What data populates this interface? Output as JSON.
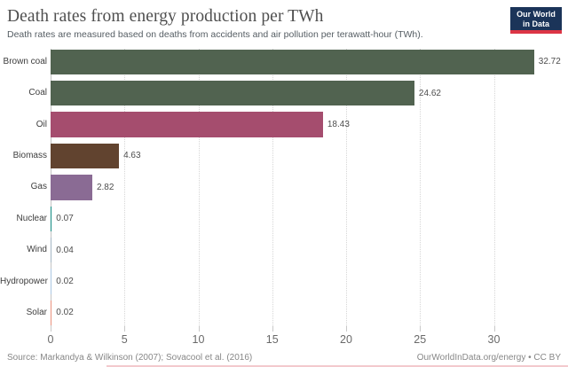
{
  "header": {
    "title": "Death rates from energy production per TWh",
    "subtitle": "Death rates are measured based on deaths from accidents and air pollution per terawatt-hour (TWh).",
    "logo": {
      "line1": "Our World",
      "line2": "in Data",
      "bg_color": "#1b3459",
      "stripe_color": "#dc3545"
    }
  },
  "chart_data": {
    "type": "bar",
    "orientation": "horizontal",
    "title": "Death rates from energy production per TWh",
    "categories": [
      "Brown coal",
      "Coal",
      "Oil",
      "Biomass",
      "Gas",
      "Nuclear",
      "Wind",
      "Hydropower",
      "Solar"
    ],
    "values": [
      32.72,
      24.62,
      18.43,
      4.63,
      2.82,
      0.07,
      0.04,
      0.02,
      0.02
    ],
    "value_labels": [
      "32.72",
      "24.62",
      "18.43",
      "4.63",
      "2.82",
      "0.07",
      "0.04",
      "0.02",
      "0.02"
    ],
    "bar_colors": [
      "#516350",
      "#516350",
      "#a54d6e",
      "#61432f",
      "#8a6b94",
      "#108980",
      "#a4b6c4",
      "#abc7e2",
      "#e9907d"
    ],
    "x_ticks": [
      0,
      5,
      10,
      15,
      20,
      25,
      30
    ],
    "xlim": [
      0,
      35
    ],
    "grid": "dotted-vertical",
    "xlabel": "",
    "ylabel": ""
  },
  "footer": {
    "source": "Source: Markandya & Wilkinson (2007); Sovacool et al. (2016)",
    "attribution": "OurWorldInData.org/energy • CC BY"
  }
}
